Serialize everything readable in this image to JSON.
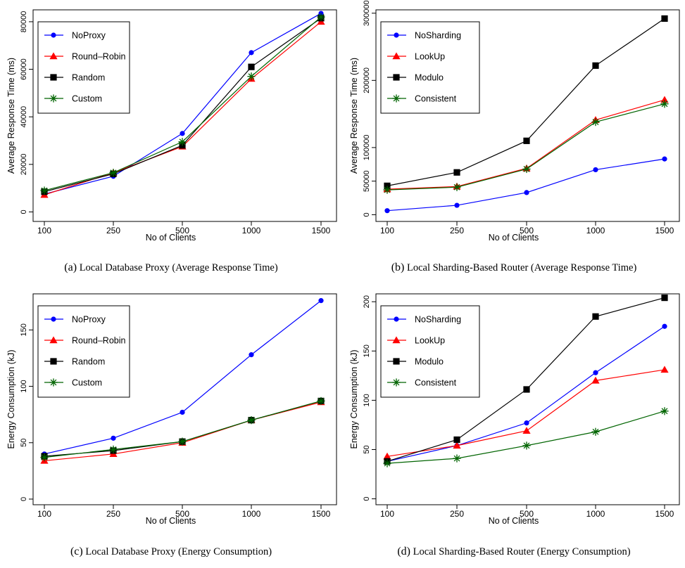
{
  "figure": {
    "panels": [
      {
        "label": "(a)",
        "caption": "Local Database Proxy (Average Response Time)"
      },
      {
        "label": "(b)",
        "caption": "Local Sharding-Based Router (Average Response Time)"
      },
      {
        "label": "(c)",
        "caption": "Local Database Proxy (Energy Consumption)"
      },
      {
        "label": "(d)",
        "caption": "Local Sharding-Based Router (Energy Consumption)"
      }
    ]
  },
  "chart_data": [
    {
      "type": "line",
      "title": "",
      "xlabel": "No of Clients",
      "ylabel": "Average Response Time (ms)",
      "categories": [
        "100",
        "250",
        "500",
        "1000",
        "1500"
      ],
      "ylim": [
        -4000,
        85000
      ],
      "yticks": [
        0,
        20000,
        40000,
        60000,
        80000
      ],
      "ytick_labels": [
        "0",
        "20000",
        "40000",
        "60000",
        "80000"
      ],
      "legend_position": "top-left",
      "grid": false,
      "series": [
        {
          "name": "NoProxy",
          "color": "#0000ff",
          "marker": "circle",
          "values": [
            7500,
            15000,
            33000,
            67000,
            83500
          ]
        },
        {
          "name": "Round–Robin",
          "color": "#ff0000",
          "marker": "triangle",
          "values": [
            7200,
            16500,
            27500,
            56000,
            80000
          ]
        },
        {
          "name": "Random",
          "color": "#000000",
          "marker": "square",
          "values": [
            8500,
            16000,
            28000,
            61000,
            81500
          ]
        },
        {
          "name": "Custom",
          "color": "#006400",
          "marker": "star",
          "values": [
            9000,
            16500,
            29500,
            57000,
            82000
          ]
        }
      ]
    },
    {
      "type": "line",
      "title": "",
      "xlabel": "No of Clients",
      "ylabel": "Average Response Time (ms)",
      "categories": [
        "100",
        "250",
        "500",
        "1000",
        "1500"
      ],
      "ylim": [
        -10000,
        305000
      ],
      "yticks": [
        0,
        50000,
        100000,
        200000,
        300000
      ],
      "ytick_labels": [
        "0",
        "50000",
        "100000",
        "200000",
        "300000"
      ],
      "legend_position": "top-left",
      "grid": false,
      "series": [
        {
          "name": "NoSharding",
          "color": "#0000ff",
          "marker": "circle",
          "values": [
            6000,
            14000,
            33000,
            67000,
            83000
          ]
        },
        {
          "name": "LookUp",
          "color": "#ff0000",
          "marker": "triangle",
          "values": [
            38000,
            42000,
            69000,
            141000,
            171000
          ]
        },
        {
          "name": "Modulo",
          "color": "#000000",
          "marker": "square",
          "values": [
            43000,
            63000,
            110000,
            222000,
            292000
          ]
        },
        {
          "name": "Consistent",
          "color": "#006400",
          "marker": "star",
          "values": [
            37000,
            41000,
            68000,
            138000,
            165000
          ]
        }
      ]
    },
    {
      "type": "line",
      "title": "",
      "xlabel": "No of Clients",
      "ylabel": "Energy Consumption (kJ)",
      "categories": [
        "100",
        "250",
        "500",
        "1000",
        "1500"
      ],
      "ylim": [
        -5,
        182
      ],
      "yticks": [
        0,
        50,
        100,
        150
      ],
      "ytick_labels": [
        "0",
        "50",
        "100",
        "150"
      ],
      "legend_position": "top-left",
      "grid": false,
      "series": [
        {
          "name": "NoProxy",
          "color": "#0000ff",
          "marker": "circle",
          "values": [
            40,
            54,
            77,
            128,
            176
          ]
        },
        {
          "name": "Round–Robin",
          "color": "#ff0000",
          "marker": "triangle",
          "values": [
            34,
            40,
            50,
            70,
            86
          ]
        },
        {
          "name": "Random",
          "color": "#000000",
          "marker": "square",
          "values": [
            38,
            43,
            51,
            70,
            87
          ]
        },
        {
          "name": "Custom",
          "color": "#006400",
          "marker": "star",
          "values": [
            37,
            44,
            51,
            70,
            87
          ]
        }
      ]
    },
    {
      "type": "line",
      "title": "",
      "xlabel": "No of Clients",
      "ylabel": "Energy Consumption (kJ)",
      "categories": [
        "100",
        "250",
        "500",
        "1000",
        "1500"
      ],
      "ylim": [
        -6,
        208
      ],
      "yticks": [
        0,
        50,
        100,
        150,
        200
      ],
      "ytick_labels": [
        "0",
        "50",
        "100",
        "150",
        "200"
      ],
      "legend_position": "top-left",
      "grid": false,
      "series": [
        {
          "name": "NoSharding",
          "color": "#0000ff",
          "marker": "circle",
          "values": [
            38,
            54,
            77,
            128,
            175
          ]
        },
        {
          "name": "LookUp",
          "color": "#ff0000",
          "marker": "triangle",
          "values": [
            43,
            54,
            69,
            120,
            131
          ]
        },
        {
          "name": "Modulo",
          "color": "#000000",
          "marker": "square",
          "values": [
            38,
            60,
            111,
            185,
            204
          ]
        },
        {
          "name": "Consistent",
          "color": "#006400",
          "marker": "star",
          "values": [
            36,
            41,
            54,
            68,
            89
          ]
        }
      ]
    }
  ]
}
